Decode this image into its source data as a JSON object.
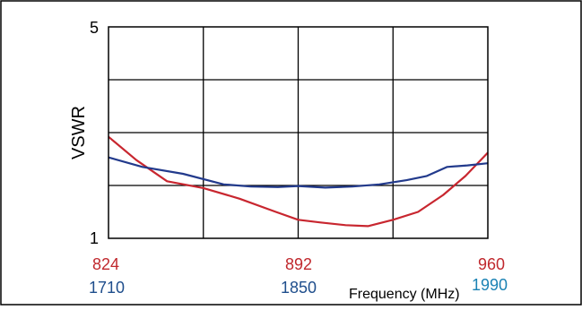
{
  "chart_data": {
    "type": "line",
    "title": "",
    "ylabel": "VSWR",
    "xlabel": "Frequency (MHz)",
    "ylim": [
      1,
      5
    ],
    "y_ticks": [
      "1",
      "5"
    ],
    "grid": true,
    "x_axes": [
      {
        "range": [
          824,
          960
        ],
        "ticks": [
          "824",
          "892",
          "960"
        ],
        "color": "#c0282d"
      },
      {
        "range": [
          1710,
          1990
        ],
        "ticks": [
          "1710",
          "1850",
          "1990"
        ],
        "color": "#1f4e8c",
        "last_tick_color": "#1a82b4"
      }
    ],
    "series": [
      {
        "axis": 0,
        "color": "#c8262f",
        "x": [
          824,
          834,
          845,
          858,
          871,
          884,
          892,
          900,
          909,
          917,
          926,
          935,
          944,
          952,
          960
        ],
        "y": [
          2.92,
          2.48,
          2.08,
          1.95,
          1.75,
          1.5,
          1.35,
          1.3,
          1.25,
          1.23,
          1.35,
          1.5,
          1.82,
          2.18,
          2.62
        ]
      },
      {
        "axis": 1,
        "color": "#223a8c",
        "x": [
          1710,
          1735,
          1765,
          1795,
          1815,
          1835,
          1850,
          1870,
          1890,
          1910,
          1930,
          1945,
          1960,
          1975,
          1990
        ],
        "y": [
          2.53,
          2.35,
          2.22,
          2.02,
          1.98,
          1.97,
          1.99,
          1.96,
          1.98,
          2.02,
          2.1,
          2.18,
          2.35,
          2.38,
          2.42
        ]
      }
    ]
  }
}
